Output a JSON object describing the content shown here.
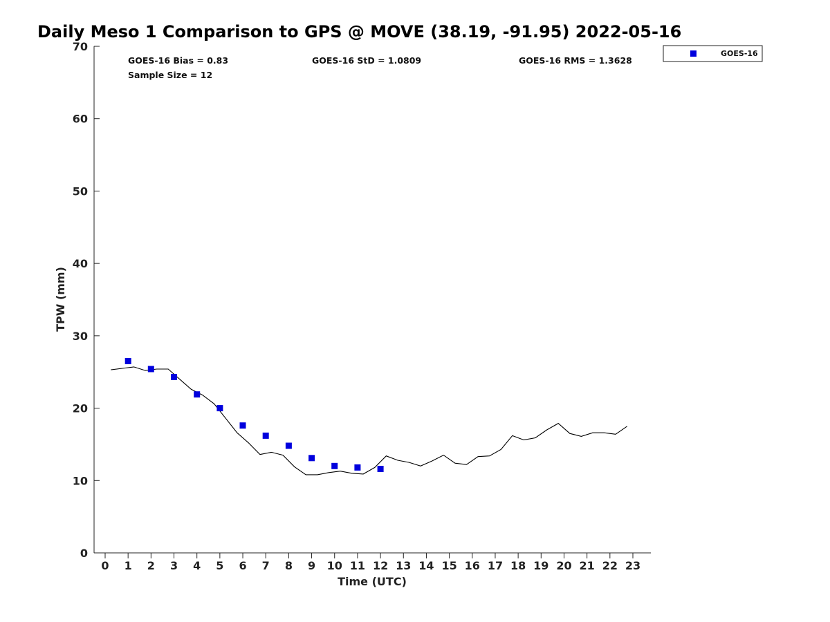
{
  "chart_data": {
    "type": "scatter",
    "title": "Daily Meso 1 Comparison to GPS @ MOVE (38.19, -91.95) 2022-05-16",
    "xlabel": "Time (UTC)",
    "ylabel": "TPW (mm)",
    "xlim": [
      -0.5,
      23.7
    ],
    "ylim": [
      0,
      70
    ],
    "x_ticks": [
      0,
      1,
      2,
      3,
      4,
      5,
      6,
      7,
      8,
      9,
      10,
      11,
      12,
      13,
      14,
      15,
      16,
      17,
      18,
      19,
      20,
      21,
      22,
      23
    ],
    "x_tick_labels": [
      "0",
      "1",
      "2",
      "3",
      "4",
      "5",
      "6",
      "7",
      "8",
      "9",
      "10",
      "11",
      "12",
      "13",
      "14",
      "15",
      "16",
      "17",
      "18",
      "19",
      "20",
      "21",
      "22",
      "23"
    ],
    "y_ticks": [
      0,
      10,
      20,
      30,
      40,
      50,
      60,
      70
    ],
    "y_tick_labels": [
      "0",
      "10",
      "20",
      "30",
      "40",
      "50",
      "60",
      "70"
    ],
    "grid": false,
    "legend_position": "outside-top-right",
    "stats": {
      "bias": "GOES-16 Bias = 0.83",
      "sample_size": "Sample Size = 12",
      "std": "GOES-16 StD = 1.0809",
      "rms": "GOES-16 RMS = 1.3628"
    },
    "series": [
      {
        "name": "GOES-16",
        "kind": "scatter",
        "marker": "square",
        "color": "#0000dd",
        "x": [
          1,
          2,
          3,
          4,
          5,
          6,
          7,
          8,
          9,
          10,
          11,
          12
        ],
        "y": [
          26.5,
          25.4,
          24.3,
          21.9,
          20.0,
          17.6,
          16.2,
          14.8,
          13.1,
          12.0,
          11.8,
          11.6
        ]
      },
      {
        "kind": "line",
        "color": "#000000",
        "x": [
          0.25,
          0.75,
          1.25,
          1.75,
          2.25,
          2.75,
          3.25,
          3.75,
          4.25,
          4.75,
          5.25,
          5.75,
          6.25,
          6.75,
          7.25,
          7.75,
          8.25,
          8.75,
          9.25,
          9.75,
          10.25,
          10.75,
          11.25,
          11.75,
          12.25,
          12.75,
          13.25,
          13.75,
          14.25,
          14.75,
          15.25,
          15.75,
          16.25,
          16.75,
          17.25,
          17.75,
          18.25,
          18.75,
          19.25,
          19.75,
          20.25,
          20.75,
          21.25,
          21.75,
          22.25,
          22.75
        ],
        "y": [
          25.3,
          25.5,
          25.7,
          25.2,
          25.4,
          25.4,
          24.0,
          22.6,
          21.8,
          20.6,
          18.6,
          16.6,
          15.2,
          13.6,
          13.9,
          13.5,
          11.9,
          10.8,
          10.8,
          11.1,
          11.3,
          11.0,
          10.9,
          11.8,
          13.4,
          12.8,
          12.5,
          12.0,
          12.7,
          13.5,
          12.4,
          12.2,
          13.3,
          13.4,
          14.3,
          16.2,
          15.6,
          15.9,
          17.0,
          17.9,
          16.5,
          16.1,
          16.6,
          16.6,
          16.4,
          17.5
        ]
      }
    ]
  }
}
